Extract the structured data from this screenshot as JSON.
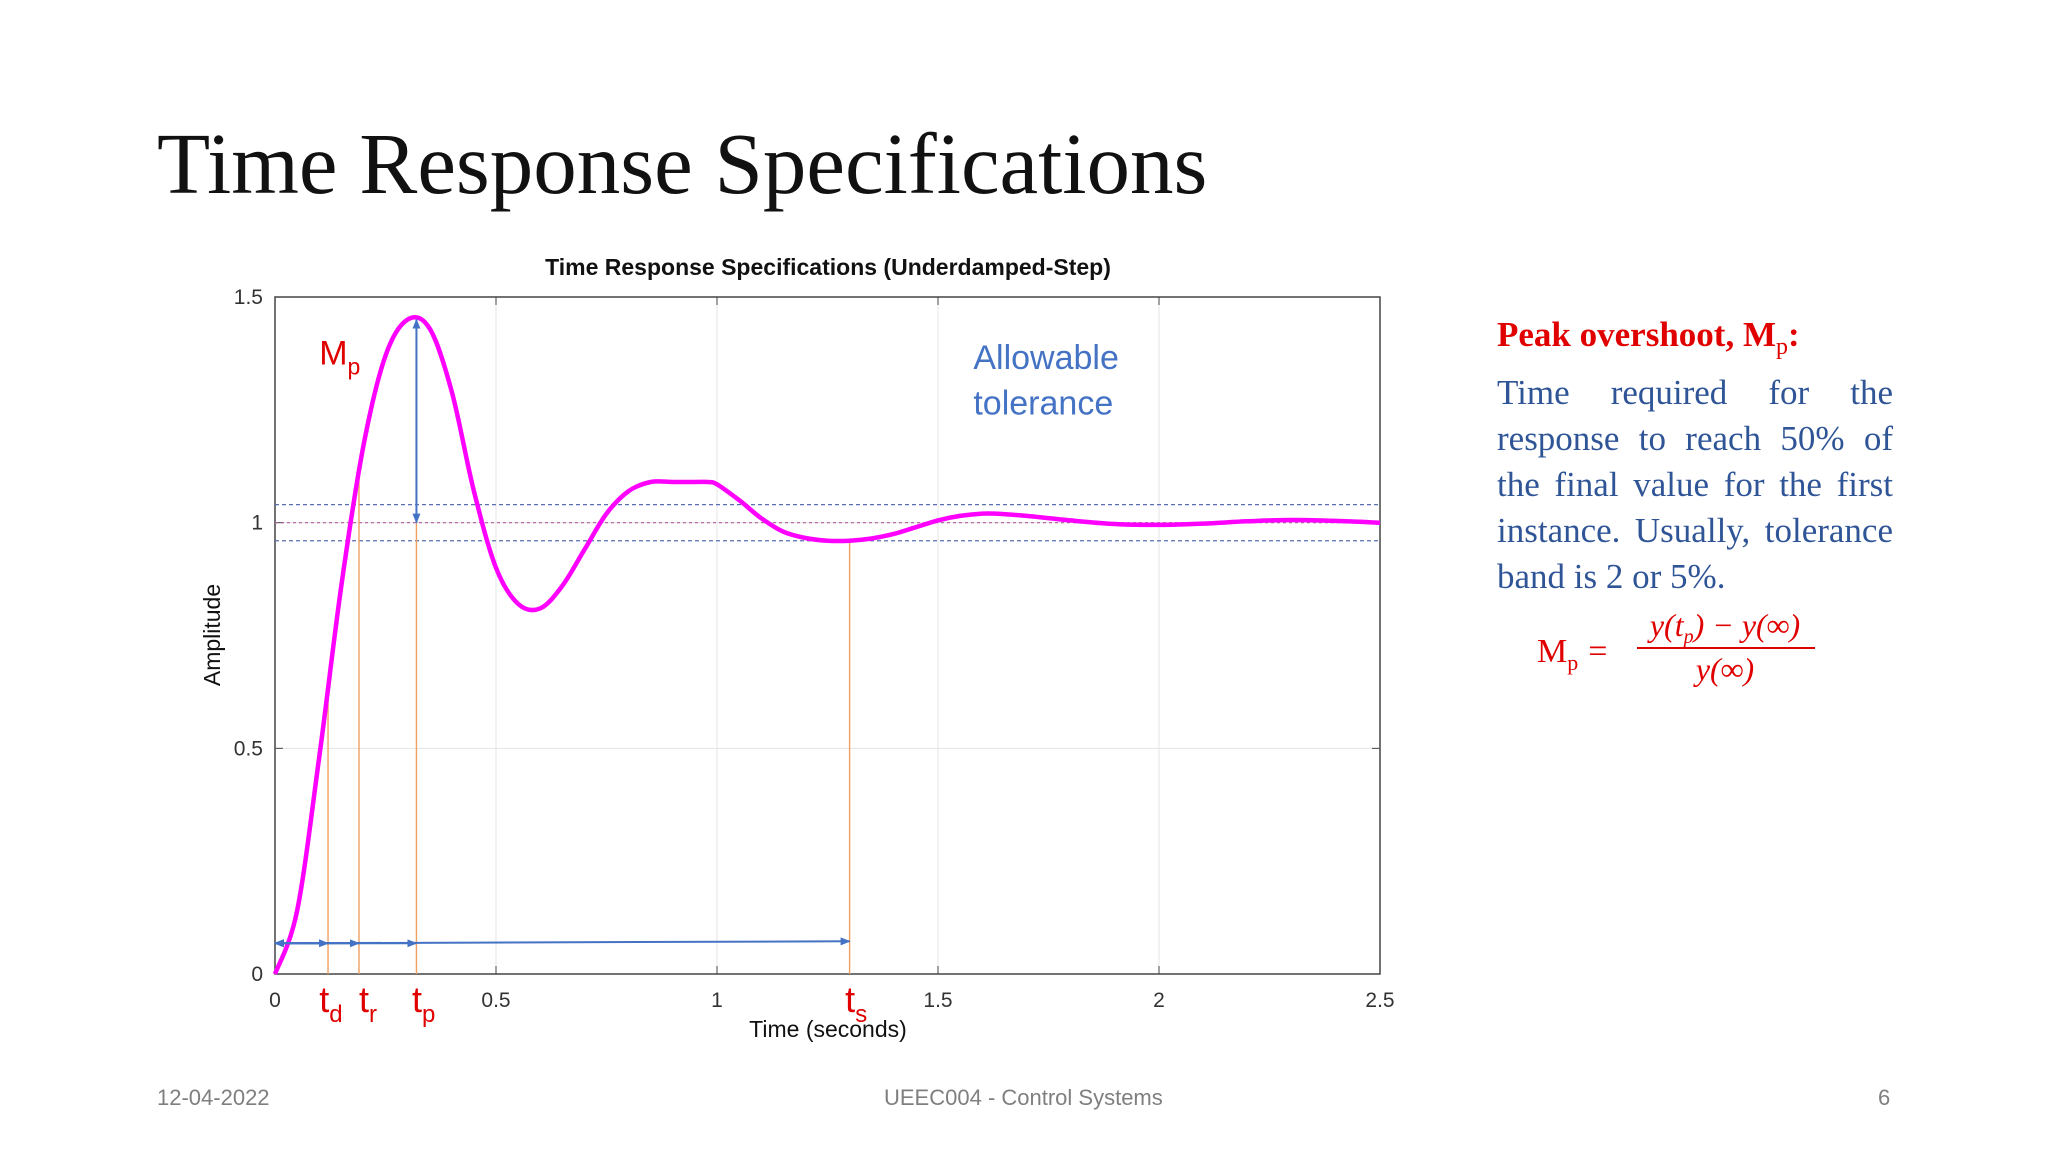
{
  "slide": {
    "title": "Time Response Specifications"
  },
  "side_panel": {
    "heading": "Peak overshoot, M",
    "heading_subscript": "p",
    "heading_suffix": ":",
    "body": "Time required for the response to reach 50% of the final value for the first instance. Usually, tolerance band is 2 or 5%.",
    "formula_lhs": "M",
    "formula_lhs_subscript": "p",
    "formula_eq": "=",
    "formula_numerator": "y(t",
    "formula_numerator_sub": "p",
    "formula_numerator_suffix": ") − y(∞)",
    "formula_denominator": "y(∞)"
  },
  "annotations": {
    "allowable_tolerance_line1": "Allowable",
    "allowable_tolerance_line2": "tolerance",
    "mp_label": "M",
    "mp_label_sub": "p",
    "td_label": "t",
    "td_label_sub": "d",
    "tr_label": "t",
    "tr_label_sub": "r",
    "tp_label": "t",
    "tp_label_sub": "p",
    "ts_label": "t",
    "ts_label_sub": "s"
  },
  "footer": {
    "date": "12-04-2022",
    "course": "UEEC004 - Control Systems",
    "page": "6"
  },
  "colors": {
    "response_curve": "#ff00ff",
    "marker_lines": "#f0a060",
    "arrows": "#4472c4",
    "annotation_red": "#e00000",
    "tolerance_text": "#4472c4",
    "tolerance_lines": "#5a6fb0"
  },
  "chart_data": {
    "type": "line",
    "title": "Time  Response Specifications (Underdamped-Step)",
    "xlabel": "Time (seconds)",
    "ylabel": "Amplitude",
    "xlim": [
      0,
      2.5
    ],
    "ylim": [
      0,
      1.5
    ],
    "x_ticks": [
      0,
      0.5,
      1,
      1.5,
      2,
      2.5
    ],
    "x_tick_labels": [
      "0",
      "0.5",
      "1",
      "1.5",
      "2",
      "2.5"
    ],
    "y_ticks": [
      0,
      0.5,
      1,
      1.5
    ],
    "y_tick_labels": [
      "0",
      "0.5",
      "1",
      "1.5"
    ],
    "grid": true,
    "series": [
      {
        "x": [
          0,
          0.05,
          0.1,
          0.15,
          0.2,
          0.25,
          0.3,
          0.35,
          0.4,
          0.45,
          0.5,
          0.55,
          0.6,
          0.65,
          0.7,
          0.75,
          0.8,
          0.85,
          0.9,
          0.95,
          0.98,
          1.0,
          1.05,
          1.1,
          1.15,
          1.2,
          1.25,
          1.3,
          1.35,
          1.4,
          1.45,
          1.5,
          1.55,
          1.6,
          1.63,
          1.7,
          1.8,
          1.9,
          2.0,
          2.1,
          2.2,
          2.3,
          2.4,
          2.5
        ],
        "y": [
          0,
          0.14,
          0.48,
          0.86,
          1.17,
          1.37,
          1.45,
          1.43,
          1.29,
          1.07,
          0.9,
          0.82,
          0.81,
          0.86,
          0.94,
          1.02,
          1.07,
          1.09,
          1.09,
          1.09,
          1.09,
          1.085,
          1.05,
          1.01,
          0.98,
          0.966,
          0.96,
          0.96,
          0.965,
          0.975,
          0.99,
          1.005,
          1.015,
          1.02,
          1.02,
          1.015,
          1.005,
          0.997,
          0.995,
          0.998,
          1.003,
          1.006,
          1.004,
          1.0
        ]
      }
    ],
    "reference_lines": {
      "final_value": 1.0,
      "tolerance_upper": 1.04,
      "tolerance_lower": 0.96
    },
    "markers": {
      "td": 0.12,
      "tr": 0.19,
      "tp": 0.32,
      "ts": 1.3
    },
    "overshoot": {
      "x": 0.32,
      "y_from": 1.0,
      "y_to": 1.45
    }
  }
}
